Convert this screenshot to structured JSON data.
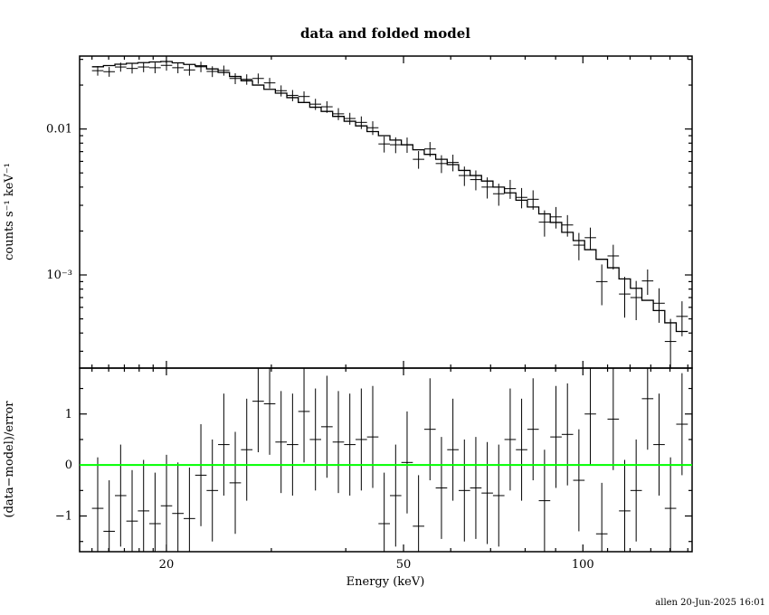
{
  "footer": "allen 20-Jun-2025 16:01",
  "colors": {
    "foreground": "#000000",
    "background": "#ffffff",
    "zero_line": "#00ff00"
  },
  "chart_data": {
    "type": "line",
    "subtype": "xspec-spectrum-with-residuals",
    "title": "data and folded model",
    "x_axis": {
      "label": "Energy (keV)",
      "scale": "log",
      "range": [
        14.3,
        152.5
      ],
      "major_ticks": [
        20,
        50,
        100
      ],
      "major_tick_labels": [
        "20",
        "50",
        "100"
      ],
      "minor_ticks": [
        15,
        16,
        17,
        18,
        19,
        30,
        40,
        60,
        70,
        80,
        90,
        110,
        120,
        130,
        140,
        150
      ]
    },
    "panels": [
      {
        "name": "spectrum",
        "y_axis": {
          "label": "counts s⁻¹ keV⁻¹",
          "scale": "log",
          "range": [
            0.00023,
            0.0316
          ],
          "major_ticks": [
            0.01,
            0.001
          ],
          "major_tick_labels": [
            "0.01",
            "10⁻³"
          ],
          "minor_ticks": [
            0.0003,
            0.0004,
            0.0005,
            0.0006,
            0.0007,
            0.0008,
            0.0009,
            0.002,
            0.003,
            0.004,
            0.005,
            0.006,
            0.007,
            0.008,
            0.009,
            0.02,
            0.03
          ]
        },
        "bin_edges_keV": [
          15.0,
          15.68,
          16.39,
          17.13,
          17.91,
          18.72,
          19.57,
          20.45,
          21.38,
          22.35,
          23.36,
          24.42,
          25.52,
          26.68,
          27.89,
          29.15,
          30.47,
          31.85,
          33.29,
          34.8,
          36.37,
          38.02,
          39.74,
          41.54,
          43.42,
          45.38,
          47.44,
          49.58,
          51.83,
          54.17,
          56.62,
          59.19,
          61.87,
          64.67,
          67.59,
          70.65,
          73.85,
          77.19,
          80.68,
          84.33,
          88.15,
          92.14,
          96.31,
          100.67,
          105.22,
          109.98,
          114.96,
          120.16,
          125.6,
          131.28,
          137.22,
          143.43,
          150.0
        ],
        "model": [
          0.0267,
          0.0272,
          0.0278,
          0.0282,
          0.0285,
          0.0288,
          0.029,
          0.0284,
          0.0277,
          0.0271,
          0.0258,
          0.0244,
          0.0229,
          0.0214,
          0.02,
          0.0187,
          0.0176,
          0.0164,
          0.0152,
          0.0141,
          0.0132,
          0.0122,
          0.0113,
          0.0105,
          0.0096,
          0.009,
          0.0084,
          0.0078,
          0.0072,
          0.0067,
          0.0062,
          0.0057,
          0.0052,
          0.0048,
          0.0044,
          0.004,
          0.00365,
          0.00325,
          0.00292,
          0.00262,
          0.00229,
          0.00196,
          0.00172,
          0.00149,
          0.00128,
          0.00112,
          0.00094,
          0.00081,
          0.00067,
          0.00057,
          0.00047,
          0.00041
        ],
        "data": [
          0.0251,
          0.0247,
          0.0266,
          0.026,
          0.0266,
          0.0263,
          0.0273,
          0.0263,
          0.0254,
          0.0267,
          0.0248,
          0.0252,
          0.0222,
          0.0219,
          0.0222,
          0.0207,
          0.0183,
          0.017,
          0.0167,
          0.0148,
          0.0142,
          0.0127,
          0.0118,
          0.0111,
          0.0102,
          0.0079,
          0.0078,
          0.0078,
          0.0062,
          0.0073,
          0.0058,
          0.0059,
          0.0048,
          0.0045,
          0.004,
          0.0036,
          0.0039,
          0.0034,
          0.0033,
          0.0023,
          0.0025,
          0.0022,
          0.0016,
          0.0018,
          0.0009,
          0.00135,
          0.00074,
          0.0007,
          0.00091,
          0.00064,
          0.00035,
          0.00052
        ],
        "data_error": [
          0.0019,
          0.0019,
          0.0019,
          0.002,
          0.0021,
          0.0022,
          0.0022,
          0.0022,
          0.0022,
          0.0022,
          0.0021,
          0.002,
          0.0019,
          0.0018,
          0.0018,
          0.0017,
          0.0016,
          0.0015,
          0.0014,
          0.0013,
          0.0013,
          0.0012,
          0.0011,
          0.0011,
          0.0011,
          0.001,
          0.00097,
          0.00094,
          0.00086,
          0.00084,
          0.00081,
          0.00077,
          0.00073,
          0.0007,
          0.00066,
          0.00062,
          0.00058,
          0.00054,
          0.0005,
          0.00047,
          0.00042,
          0.00037,
          0.00034,
          0.00031,
          0.00028,
          0.00026,
          0.00023,
          0.00021,
          0.00018,
          0.00017,
          0.00015,
          0.00014
        ]
      },
      {
        "name": "residuals",
        "y_axis": {
          "label": "(data−model)/error",
          "scale": "linear",
          "range": [
            -1.7,
            1.9
          ],
          "major_ticks": [
            -1,
            0,
            1
          ],
          "major_tick_labels": [
            "−1",
            "0",
            "1"
          ],
          "minor_ticks": [
            -1.5,
            -0.5,
            0.5,
            1.5
          ]
        },
        "values": [
          -0.85,
          -1.3,
          -0.6,
          -1.1,
          -0.9,
          -1.15,
          -0.8,
          -0.95,
          -1.05,
          -0.2,
          -0.5,
          0.4,
          -0.35,
          0.3,
          1.25,
          1.2,
          0.45,
          0.4,
          1.05,
          0.5,
          0.75,
          0.45,
          0.4,
          0.5,
          0.55,
          -1.15,
          -0.6,
          0.05,
          -1.2,
          0.7,
          -0.45,
          0.3,
          -0.5,
          -0.45,
          -0.55,
          -0.6,
          0.5,
          0.3,
          0.7,
          -0.7,
          0.55,
          0.6,
          -0.3,
          1.0,
          -1.35,
          0.9,
          -0.9,
          -0.5,
          1.3,
          0.4,
          -0.85,
          0.8
        ],
        "error": 1,
        "zero_line_color": "#00ff00"
      }
    ]
  }
}
